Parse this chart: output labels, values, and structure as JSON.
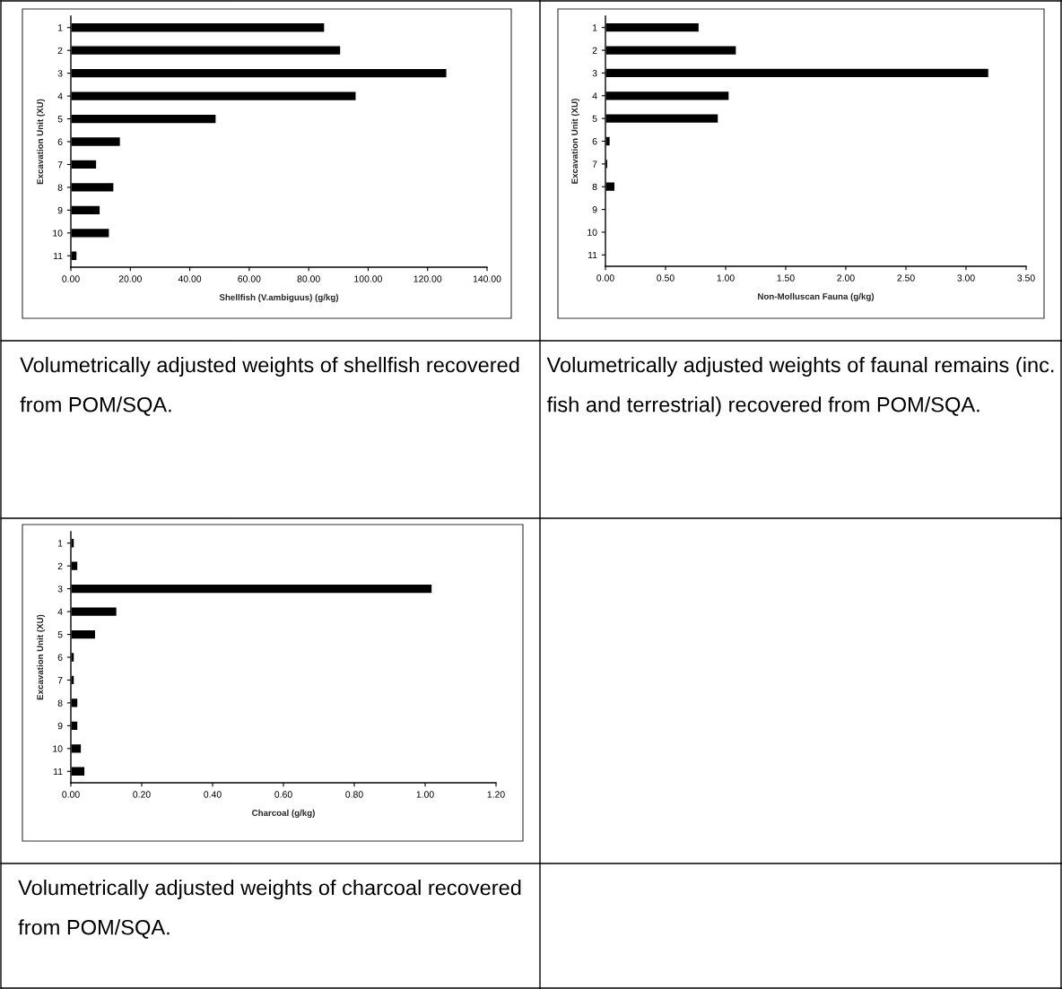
{
  "chart_data": [
    {
      "type": "bar",
      "orientation": "horizontal",
      "categories": [
        "1",
        "2",
        "3",
        "4",
        "5",
        "6",
        "7",
        "8",
        "9",
        "10",
        "11"
      ],
      "color": "#000000",
      "values": [
        85.4,
        90.8,
        126.5,
        96.0,
        48.9,
        16.7,
        8.7,
        14.5,
        9.9,
        13.0,
        2.1
      ],
      "xlim": [
        0,
        140
      ],
      "xticks": [
        {
          "value": 0,
          "label": "0.00"
        },
        {
          "value": 20,
          "label": "20.00"
        },
        {
          "value": 40,
          "label": "40.00"
        },
        {
          "value": 60,
          "label": "60.00"
        },
        {
          "value": 80,
          "label": "80.00"
        },
        {
          "value": 100,
          "label": "100.00"
        },
        {
          "value": 120,
          "label": "120.00"
        },
        {
          "value": 140,
          "label": "140.00"
        }
      ],
      "xlabel": "Shellfish (V.ambiguus) (g/kg)",
      "ylabel": "Excavation Unit (XU)",
      "grid": false,
      "legend": false,
      "annotations": [
        "Volumetrically adjusted weights of shellfish recovered from POM/SQA."
      ]
    },
    {
      "type": "bar",
      "orientation": "horizontal",
      "categories": [
        "1",
        "2",
        "3",
        "4",
        "5",
        "6",
        "7",
        "8",
        "9",
        "10",
        "11"
      ],
      "color": "#000000",
      "values": [
        0.78,
        1.09,
        3.19,
        1.03,
        0.94,
        0.04,
        0.02,
        0.08,
        null,
        null,
        null
      ],
      "xlim": [
        0,
        3.5
      ],
      "xticks": [
        {
          "value": 0,
          "label": "0.00"
        },
        {
          "value": 0.5,
          "label": "0.50"
        },
        {
          "value": 1,
          "label": "1.00"
        },
        {
          "value": 1.5,
          "label": "1.50"
        },
        {
          "value": 2,
          "label": "2.00"
        },
        {
          "value": 2.5,
          "label": "2.50"
        },
        {
          "value": 3,
          "label": "3.00"
        },
        {
          "value": 3.5,
          "label": "3.50"
        }
      ],
      "xlabel": "Non-Molluscan Fauna (g/kg)",
      "ylabel": "Excavation Unit (XU)",
      "grid": false,
      "legend": false,
      "annotations": [
        "Volumetrically adjusted weights of faunal remains (inc. fish and terrestrial) recovered from POM/SQA."
      ]
    },
    {
      "type": "bar",
      "orientation": "horizontal",
      "categories": [
        "1",
        "2",
        "3",
        "4",
        "5",
        "6",
        "7",
        "8",
        "9",
        "10",
        "11"
      ],
      "color": "#000000",
      "values": [
        0.01,
        0.02,
        1.02,
        0.13,
        0.07,
        0.01,
        0.01,
        0.02,
        0.02,
        0.03,
        0.04
      ],
      "xlim": [
        0,
        1.2
      ],
      "xticks": [
        {
          "value": 0,
          "label": "0.00"
        },
        {
          "value": 0.2,
          "label": "0.20"
        },
        {
          "value": 0.4,
          "label": "0.40"
        },
        {
          "value": 0.6,
          "label": "0.60"
        },
        {
          "value": 0.8,
          "label": "0.80"
        },
        {
          "value": 1,
          "label": "1.00"
        },
        {
          "value": 1.2,
          "label": "1.20"
        }
      ],
      "xlabel": "Charcoal (g/kg)",
      "ylabel": "Excavation Unit (XU)",
      "grid": false,
      "legend": false,
      "annotations": [
        "Volumetrically adjusted weights of charcoal recovered from POM/SQA."
      ]
    }
  ]
}
